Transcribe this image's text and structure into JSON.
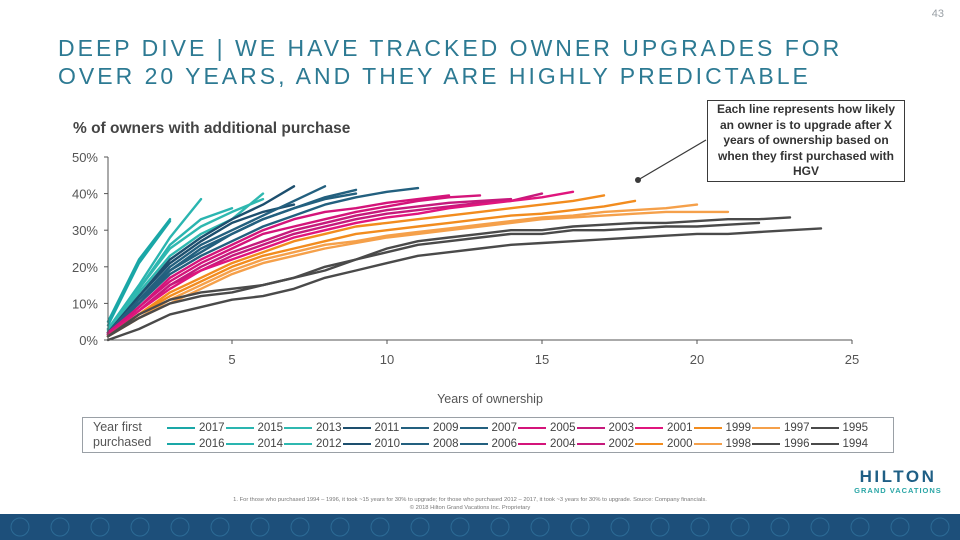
{
  "page_number": "43",
  "title": "DEEP DIVE | WE HAVE TRACKED OWNER UPGRADES FOR OVER 20 YEARS, AND THEY ARE HIGHLY PREDICTABLE",
  "callout": "Each line represents how likely an owner is to upgrade after X years of ownership based on when they first purchased with HGV",
  "footnote": "1. For those who purchased 1994 – 1996, it took ~15 years for 30% to upgrade; for those who purchased 2012 – 2017, it took ~3 years for 30% to upgrade. Source: Company financials.",
  "copyright": "© 2018 Hilton Grand Vacations Inc. Proprietary",
  "logo": {
    "main": "HILTON",
    "sub": "GRAND VACATIONS"
  },
  "legend_title": "Year first purchased",
  "chart_data": {
    "type": "line",
    "title": "% of owners with additional purchase",
    "xlabel": "Years of ownership",
    "ylabel": "",
    "xlim": [
      1,
      25
    ],
    "ylim": [
      0,
      0.5
    ],
    "x_ticks": [
      5,
      10,
      15,
      20,
      25
    ],
    "y_ticks": [
      0,
      0.1,
      0.2,
      0.3,
      0.4,
      0.5
    ],
    "y_tick_labels": [
      "0%",
      "10%",
      "20%",
      "30%",
      "40%",
      "50%"
    ],
    "grid": false,
    "legend": "bottom",
    "series": [
      {
        "name": "2017",
        "color": "#1aa7a7",
        "x": [
          1,
          2,
          3
        ],
        "y": [
          0.05,
          0.22,
          0.33
        ]
      },
      {
        "name": "2016",
        "color": "#1aa7a7",
        "x": [
          1,
          2,
          3
        ],
        "y": [
          0.04,
          0.21,
          0.325
        ]
      },
      {
        "name": "2015",
        "color": "#2ab5b0",
        "x": [
          1,
          2,
          3,
          4
        ],
        "y": [
          0.03,
          0.15,
          0.28,
          0.385
        ]
      },
      {
        "name": "2014",
        "color": "#2ab5b0",
        "x": [
          1,
          2,
          3,
          4,
          5
        ],
        "y": [
          0.03,
          0.14,
          0.26,
          0.33,
          0.36
        ]
      },
      {
        "name": "2013",
        "color": "#2fb8b0",
        "x": [
          1,
          2,
          3,
          4,
          5,
          6
        ],
        "y": [
          0.03,
          0.14,
          0.25,
          0.31,
          0.35,
          0.385
        ]
      },
      {
        "name": "2012",
        "color": "#2fb8b0",
        "x": [
          1,
          2,
          3,
          4,
          5,
          6
        ],
        "y": [
          0.025,
          0.13,
          0.23,
          0.29,
          0.33,
          0.4
        ]
      },
      {
        "name": "2011",
        "color": "#1d4f6e",
        "x": [
          1,
          2,
          3,
          4,
          5,
          6,
          7
        ],
        "y": [
          0.02,
          0.12,
          0.22,
          0.28,
          0.33,
          0.37,
          0.42
        ]
      },
      {
        "name": "2010",
        "color": "#1d4f6e",
        "x": [
          1,
          2,
          3,
          4,
          5,
          6,
          7
        ],
        "y": [
          0.02,
          0.12,
          0.21,
          0.27,
          0.32,
          0.35,
          0.37
        ]
      },
      {
        "name": "2009",
        "color": "#23607f",
        "x": [
          1,
          2,
          3,
          4,
          5,
          6,
          7,
          8
        ],
        "y": [
          0.02,
          0.11,
          0.2,
          0.26,
          0.3,
          0.34,
          0.38,
          0.42
        ]
      },
      {
        "name": "2008",
        "color": "#23607f",
        "x": [
          1,
          2,
          3,
          4,
          5,
          6,
          7,
          8,
          9
        ],
        "y": [
          0.02,
          0.11,
          0.19,
          0.25,
          0.29,
          0.33,
          0.36,
          0.385,
          0.4
        ]
      },
      {
        "name": "2007",
        "color": "#23607f",
        "x": [
          1,
          2,
          3,
          4,
          5,
          6,
          7,
          8,
          9
        ],
        "y": [
          0.02,
          0.1,
          0.19,
          0.24,
          0.29,
          0.33,
          0.36,
          0.39,
          0.41
        ]
      },
      {
        "name": "2006",
        "color": "#23607f",
        "x": [
          1,
          2,
          3,
          4,
          5,
          6,
          7,
          8,
          9,
          10,
          11
        ],
        "y": [
          0.02,
          0.1,
          0.18,
          0.23,
          0.27,
          0.31,
          0.34,
          0.37,
          0.39,
          0.405,
          0.415
        ]
      },
      {
        "name": "2005",
        "color": "#d4147a",
        "x": [
          1,
          2,
          3,
          4,
          5,
          6,
          7,
          8,
          9,
          10,
          11,
          12
        ],
        "y": [
          0.02,
          0.09,
          0.17,
          0.22,
          0.26,
          0.3,
          0.33,
          0.35,
          0.36,
          0.375,
          0.385,
          0.395
        ]
      },
      {
        "name": "2004",
        "color": "#d4147a",
        "x": [
          1,
          2,
          3,
          4,
          5,
          6,
          7,
          8,
          9,
          10,
          11,
          12,
          13
        ],
        "y": [
          0.015,
          0.09,
          0.16,
          0.21,
          0.25,
          0.29,
          0.31,
          0.33,
          0.35,
          0.365,
          0.38,
          0.39,
          0.395
        ]
      },
      {
        "name": "2003",
        "color": "#c61a7c",
        "x": [
          1,
          2,
          3,
          4,
          5,
          6,
          7,
          8,
          9,
          10,
          11,
          12,
          13,
          14
        ],
        "y": [
          0.015,
          0.08,
          0.15,
          0.2,
          0.24,
          0.27,
          0.3,
          0.32,
          0.34,
          0.355,
          0.365,
          0.375,
          0.38,
          0.385
        ]
      },
      {
        "name": "2002",
        "color": "#c61a7c",
        "x": [
          1,
          2,
          3,
          4,
          5,
          6,
          7,
          8,
          9,
          10,
          11,
          12,
          13,
          14,
          15
        ],
        "y": [
          0.015,
          0.08,
          0.15,
          0.19,
          0.23,
          0.26,
          0.29,
          0.31,
          0.33,
          0.345,
          0.355,
          0.365,
          0.375,
          0.38,
          0.4
        ]
      },
      {
        "name": "2001",
        "color": "#e0157d",
        "x": [
          1,
          2,
          3,
          4,
          5,
          6,
          7,
          8,
          9,
          10,
          11,
          12,
          13,
          14,
          15,
          16
        ],
        "y": [
          0.015,
          0.08,
          0.14,
          0.19,
          0.22,
          0.25,
          0.28,
          0.3,
          0.32,
          0.335,
          0.345,
          0.36,
          0.37,
          0.38,
          0.39,
          0.405
        ]
      },
      {
        "name": "2000",
        "color": "#f28c1e",
        "x": [
          1,
          2,
          3,
          4,
          5,
          6,
          7,
          8,
          9,
          10,
          11,
          12,
          13,
          14,
          15,
          16,
          17
        ],
        "y": [
          0.01,
          0.07,
          0.13,
          0.17,
          0.21,
          0.24,
          0.27,
          0.29,
          0.31,
          0.32,
          0.33,
          0.34,
          0.35,
          0.36,
          0.37,
          0.38,
          0.395
        ]
      },
      {
        "name": "1999",
        "color": "#f28c1e",
        "x": [
          1,
          2,
          3,
          4,
          5,
          6,
          7,
          8,
          9,
          10,
          11,
          12,
          13,
          14,
          15,
          16,
          17,
          18
        ],
        "y": [
          0.01,
          0.07,
          0.12,
          0.16,
          0.2,
          0.23,
          0.25,
          0.27,
          0.29,
          0.3,
          0.31,
          0.32,
          0.33,
          0.34,
          0.345,
          0.355,
          0.365,
          0.38
        ]
      },
      {
        "name": "1998",
        "color": "#f5a04a",
        "x": [
          1,
          2,
          3,
          4,
          5,
          6,
          7,
          8,
          9,
          10,
          11,
          12,
          13,
          14,
          15,
          16,
          17,
          18,
          19,
          20
        ],
        "y": [
          0.01,
          0.06,
          0.11,
          0.15,
          0.19,
          0.22,
          0.24,
          0.26,
          0.27,
          0.285,
          0.295,
          0.305,
          0.315,
          0.325,
          0.335,
          0.34,
          0.35,
          0.355,
          0.36,
          0.37
        ]
      },
      {
        "name": "1997",
        "color": "#f5a04a",
        "x": [
          1,
          2,
          3,
          4,
          5,
          6,
          7,
          8,
          9,
          10,
          11,
          12,
          13,
          14,
          15,
          16,
          17,
          18,
          19,
          20,
          21
        ],
        "y": [
          0.01,
          0.06,
          0.1,
          0.14,
          0.18,
          0.21,
          0.23,
          0.25,
          0.265,
          0.28,
          0.29,
          0.3,
          0.31,
          0.32,
          0.33,
          0.335,
          0.34,
          0.345,
          0.35,
          0.35,
          0.35
        ]
      },
      {
        "name": "1996",
        "color": "#4a4a4a",
        "x": [
          1,
          2,
          3,
          4,
          5,
          6,
          7,
          8,
          9,
          10,
          11,
          12,
          13,
          14,
          15,
          16,
          17,
          18,
          19,
          20,
          21,
          22,
          23
        ],
        "y": [
          0.01,
          0.07,
          0.11,
          0.13,
          0.14,
          0.15,
          0.17,
          0.19,
          0.22,
          0.25,
          0.27,
          0.28,
          0.29,
          0.3,
          0.3,
          0.31,
          0.315,
          0.32,
          0.32,
          0.325,
          0.33,
          0.33,
          0.335
        ]
      },
      {
        "name": "1995",
        "color": "#4a4a4a",
        "x": [
          1,
          2,
          3,
          4,
          5,
          6,
          7,
          8,
          9,
          10,
          11,
          12,
          13,
          14,
          15,
          16,
          17,
          18,
          19,
          20,
          21,
          22
        ],
        "y": [
          0.01,
          0.06,
          0.1,
          0.12,
          0.13,
          0.15,
          0.17,
          0.2,
          0.22,
          0.24,
          0.26,
          0.27,
          0.28,
          0.29,
          0.29,
          0.3,
          0.3,
          0.305,
          0.31,
          0.31,
          0.315,
          0.32
        ]
      },
      {
        "name": "1994",
        "color": "#4a4a4a",
        "x": [
          1,
          2,
          3,
          4,
          5,
          6,
          7,
          8,
          9,
          10,
          11,
          12,
          13,
          14,
          15,
          16,
          17,
          18,
          19,
          20,
          21,
          22,
          23,
          24
        ],
        "y": [
          0.0,
          0.03,
          0.07,
          0.09,
          0.11,
          0.12,
          0.14,
          0.17,
          0.19,
          0.21,
          0.23,
          0.24,
          0.25,
          0.26,
          0.265,
          0.27,
          0.275,
          0.28,
          0.285,
          0.29,
          0.29,
          0.295,
          0.3,
          0.305
        ]
      }
    ]
  }
}
